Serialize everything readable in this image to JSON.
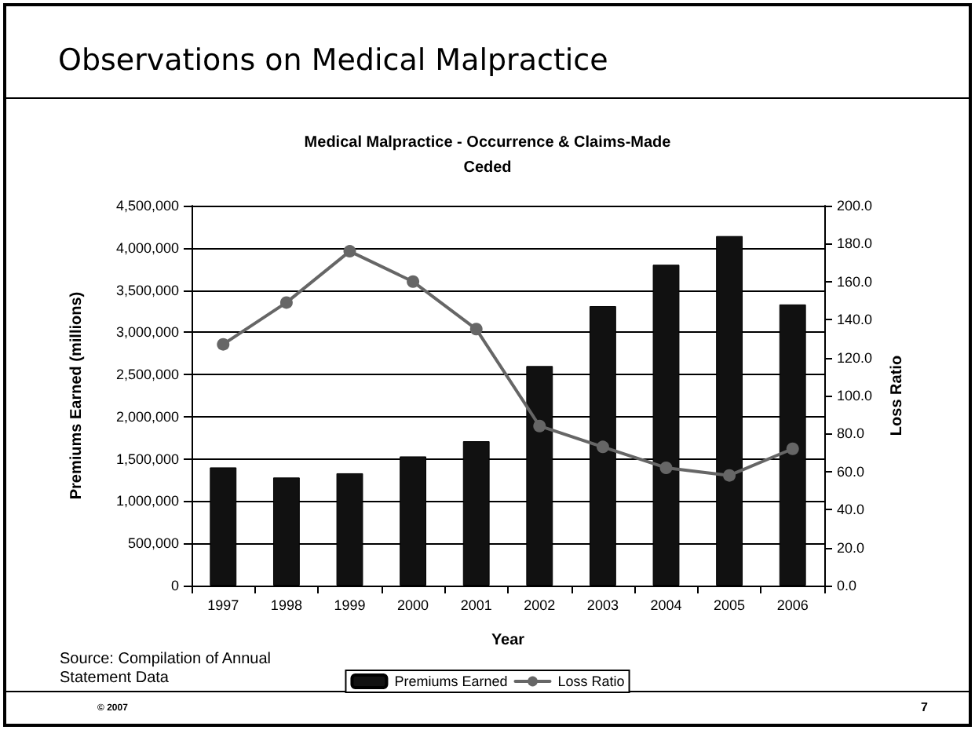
{
  "chart_data": {
    "type": "bar",
    "title": "Observations on Medical Malpractice",
    "subtitle": "Medical Malpractice - Occurrence & Claims-Made\nCeded",
    "xlabel": "Year",
    "ylabel": "Premiums Earned (millions)",
    "y2label": "Loss Ratio",
    "categories": [
      "1997",
      "1998",
      "1999",
      "2000",
      "2001",
      "2002",
      "2003",
      "2004",
      "2005",
      "2006"
    ],
    "series": [
      {
        "name": "Premiums Earned",
        "color": "#111111",
        "values": [
          1400000,
          1280000,
          1330000,
          1530000,
          1710000,
          2600000,
          3310000,
          3800000,
          4140000,
          3330000
        ]
      },
      {
        "name": "Loss Ratio",
        "type": "line",
        "axis": "y2",
        "color": "#666666",
        "values": [
          127,
          149,
          176,
          160,
          135,
          84,
          73,
          62,
          58,
          72
        ]
      }
    ],
    "ylim": [
      0,
      4500000
    ],
    "yticks": [
      {
        "value": 0,
        "label": "0"
      },
      {
        "value": 500000,
        "label": "500,000"
      },
      {
        "value": 1000000,
        "label": "1,000,000"
      },
      {
        "value": 1500000,
        "label": "1,500,000"
      },
      {
        "value": 2000000,
        "label": "2,000,000"
      },
      {
        "value": 2500000,
        "label": "2,500,000"
      },
      {
        "value": 3000000,
        "label": "3,000,000"
      },
      {
        "value": 3500000,
        "label": "3,500,000"
      },
      {
        "value": 4000000,
        "label": "4,000,000"
      },
      {
        "value": 4500000,
        "label": "4,500,000"
      }
    ],
    "y2lim": [
      0,
      200
    ],
    "y2ticks": [
      {
        "value": 0,
        "label": "0.0"
      },
      {
        "value": 20,
        "label": "20.0"
      },
      {
        "value": 40,
        "label": "40.0"
      },
      {
        "value": 60,
        "label": "60.0"
      },
      {
        "value": 80,
        "label": "80.0"
      },
      {
        "value": 100,
        "label": "100.0"
      },
      {
        "value": 120,
        "label": "120.0"
      },
      {
        "value": 140,
        "label": "140.0"
      },
      {
        "value": 160,
        "label": "160.0"
      },
      {
        "value": 180,
        "label": "180.0"
      },
      {
        "value": 200,
        "label": "200.0"
      }
    ],
    "grid": "y",
    "legend": "bottom",
    "marker": "circle",
    "line_style": "solid",
    "annotations": [
      "Source: Compilation of Annual\nStatement Data",
      "© 2007",
      "7"
    ]
  }
}
